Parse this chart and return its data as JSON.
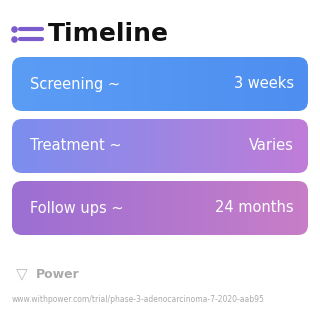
{
  "title": "Timeline",
  "background_color": "#ffffff",
  "rows": [
    {
      "label": "Screening ~",
      "value": "3 weeks",
      "color_left": "#5b9df5",
      "color_right": "#4d8ef0"
    },
    {
      "label": "Treatment ~",
      "value": "Varies",
      "color_left": "#7b8eef",
      "color_right": "#c07dd8"
    },
    {
      "label": "Follow ups ~",
      "value": "24 months",
      "color_left": "#9b6fd4",
      "color_right": "#c87ec8"
    }
  ],
  "footer_logo": "Power",
  "footer_url": "www.withpower.com/trial/phase-3-adenocarcinoma-7-2020-aab95",
  "title_fontsize": 18,
  "row_label_fontsize": 10.5,
  "row_value_fontsize": 10.5,
  "footer_fontsize": 9,
  "url_fontsize": 5.5,
  "icon_color": "#7b5ccc",
  "footer_color": "#aaaaaa"
}
